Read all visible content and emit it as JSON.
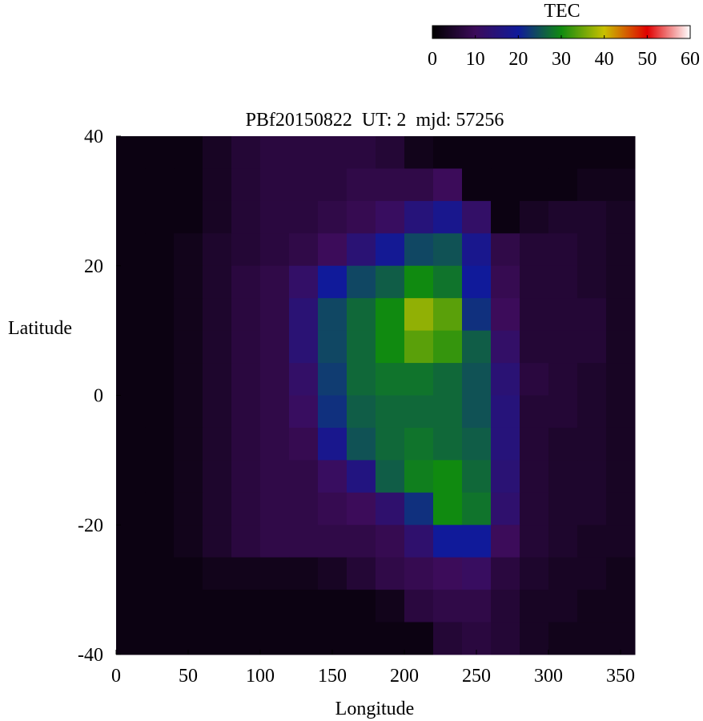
{
  "chart_data": {
    "type": "heatmap",
    "title": "PBf20150822  UT: 2  mjd: 57256",
    "x_label": "Longitude",
    "y_label": "Latitude",
    "colorbar_label": "TEC",
    "x": [
      10,
      30,
      50,
      70,
      90,
      110,
      130,
      150,
      170,
      190,
      210,
      230,
      250,
      270,
      290,
      310,
      330,
      350
    ],
    "y": [
      37.5,
      32.5,
      27.5,
      22.5,
      17.5,
      12.5,
      7.5,
      2.5,
      -2.5,
      -7.5,
      -12.5,
      -17.5,
      -22.5,
      -27.5,
      -32.5,
      -37.5
    ],
    "values": [
      [
        2,
        2,
        2,
        4,
        6,
        7,
        7,
        7,
        7,
        6,
        3,
        2,
        2,
        2,
        2,
        2,
        2,
        2
      ],
      [
        2,
        2,
        2,
        4,
        6,
        7,
        7,
        7,
        8,
        8,
        8,
        10,
        2,
        2,
        2,
        2,
        3,
        3
      ],
      [
        2,
        2,
        2,
        4,
        6,
        7,
        7,
        8,
        9,
        11,
        15,
        18,
        12,
        2,
        4,
        5,
        5,
        4
      ],
      [
        2,
        2,
        3,
        5,
        6,
        7,
        8,
        10,
        14,
        19,
        24,
        25,
        18,
        8,
        6,
        6,
        5,
        4
      ],
      [
        2,
        2,
        3,
        5,
        7,
        8,
        12,
        20,
        24,
        26,
        30,
        28,
        20,
        9,
        6,
        6,
        5,
        4
      ],
      [
        2,
        2,
        3,
        5,
        7,
        8,
        14,
        24,
        27,
        30,
        37,
        34,
        22,
        10,
        6,
        6,
        6,
        4
      ],
      [
        2,
        2,
        3,
        5,
        7,
        8,
        14,
        24,
        27,
        30,
        34,
        32,
        26,
        12,
        6,
        6,
        6,
        4
      ],
      [
        2,
        2,
        3,
        5,
        7,
        8,
        12,
        23,
        27,
        28,
        28,
        27,
        25,
        14,
        7,
        6,
        5,
        4
      ],
      [
        2,
        2,
        3,
        5,
        7,
        8,
        11,
        22,
        26,
        27,
        27,
        27,
        25,
        15,
        6,
        6,
        5,
        4
      ],
      [
        2,
        2,
        3,
        5,
        7,
        8,
        9,
        18,
        25,
        27,
        28,
        27,
        26,
        15,
        6,
        5,
        5,
        4
      ],
      [
        2,
        2,
        3,
        5,
        7,
        8,
        8,
        11,
        16,
        26,
        29,
        30,
        27,
        14,
        6,
        5,
        5,
        4
      ],
      [
        2,
        2,
        3,
        5,
        7,
        8,
        8,
        9,
        10,
        13,
        22,
        30,
        28,
        13,
        6,
        5,
        5,
        4
      ],
      [
        2,
        2,
        3,
        5,
        7,
        8,
        8,
        8,
        8,
        9,
        13,
        20,
        20,
        10,
        6,
        5,
        4,
        4
      ],
      [
        2,
        2,
        2,
        3,
        3,
        3,
        3,
        4,
        6,
        8,
        9,
        10,
        11,
        7,
        5,
        4,
        4,
        3
      ],
      [
        2,
        2,
        2,
        2,
        2,
        2,
        2,
        2,
        2,
        3,
        7,
        8,
        8,
        6,
        4,
        4,
        3,
        3
      ],
      [
        2,
        2,
        2,
        2,
        2,
        2,
        2,
        2,
        2,
        2,
        2,
        6,
        7,
        6,
        4,
        3,
        3,
        3
      ]
    ],
    "xlim": [
      0,
      360
    ],
    "xticks": [
      0,
      50,
      100,
      150,
      200,
      250,
      300,
      350
    ],
    "ylim": [
      -40,
      40
    ],
    "yticks": [
      -40,
      -20,
      0,
      20,
      40
    ],
    "clim": [
      0,
      60
    ],
    "cticks": [
      0,
      10,
      20,
      30,
      40,
      50,
      60
    ],
    "colorscale": [
      "#000000",
      "#3c0c5a",
      "#101a9a",
      "#108a10",
      "#c8c000",
      "#e00000",
      "#ffffff"
    ]
  }
}
